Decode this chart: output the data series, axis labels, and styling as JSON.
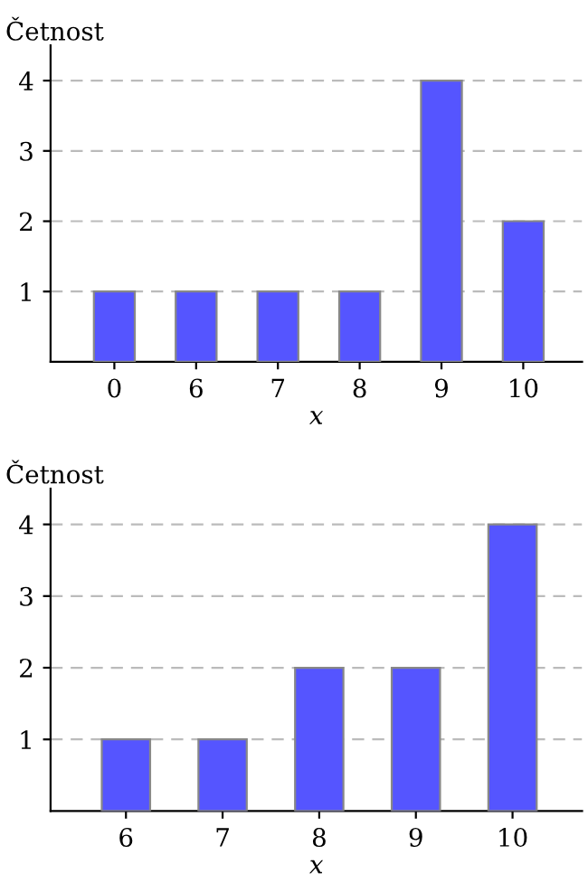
{
  "chart_data": [
    {
      "type": "bar",
      "xlabel": "x",
      "ylabel": "Četnost",
      "categories": [
        "0",
        "6",
        "7",
        "8",
        "9",
        "10"
      ],
      "series": [
        {
          "color": "#5555ff",
          "values": [
            1,
            1,
            1,
            1,
            4,
            2
          ]
        }
      ],
      "ylim": [
        0,
        4.5
      ],
      "yticks": [
        1,
        2,
        3,
        4
      ],
      "grid": "y",
      "line_style": "dashed"
    },
    {
      "type": "bar",
      "xlabel": "x",
      "ylabel": "Četnost",
      "categories": [
        "6",
        "7",
        "8",
        "9",
        "10"
      ],
      "series": [
        {
          "color": "#5555ff",
          "values": [
            1,
            1,
            2,
            2,
            4
          ]
        }
      ],
      "ylim": [
        0,
        4.5
      ],
      "yticks": [
        1,
        2,
        3,
        4
      ],
      "grid": "y",
      "line_style": "dashed"
    }
  ]
}
